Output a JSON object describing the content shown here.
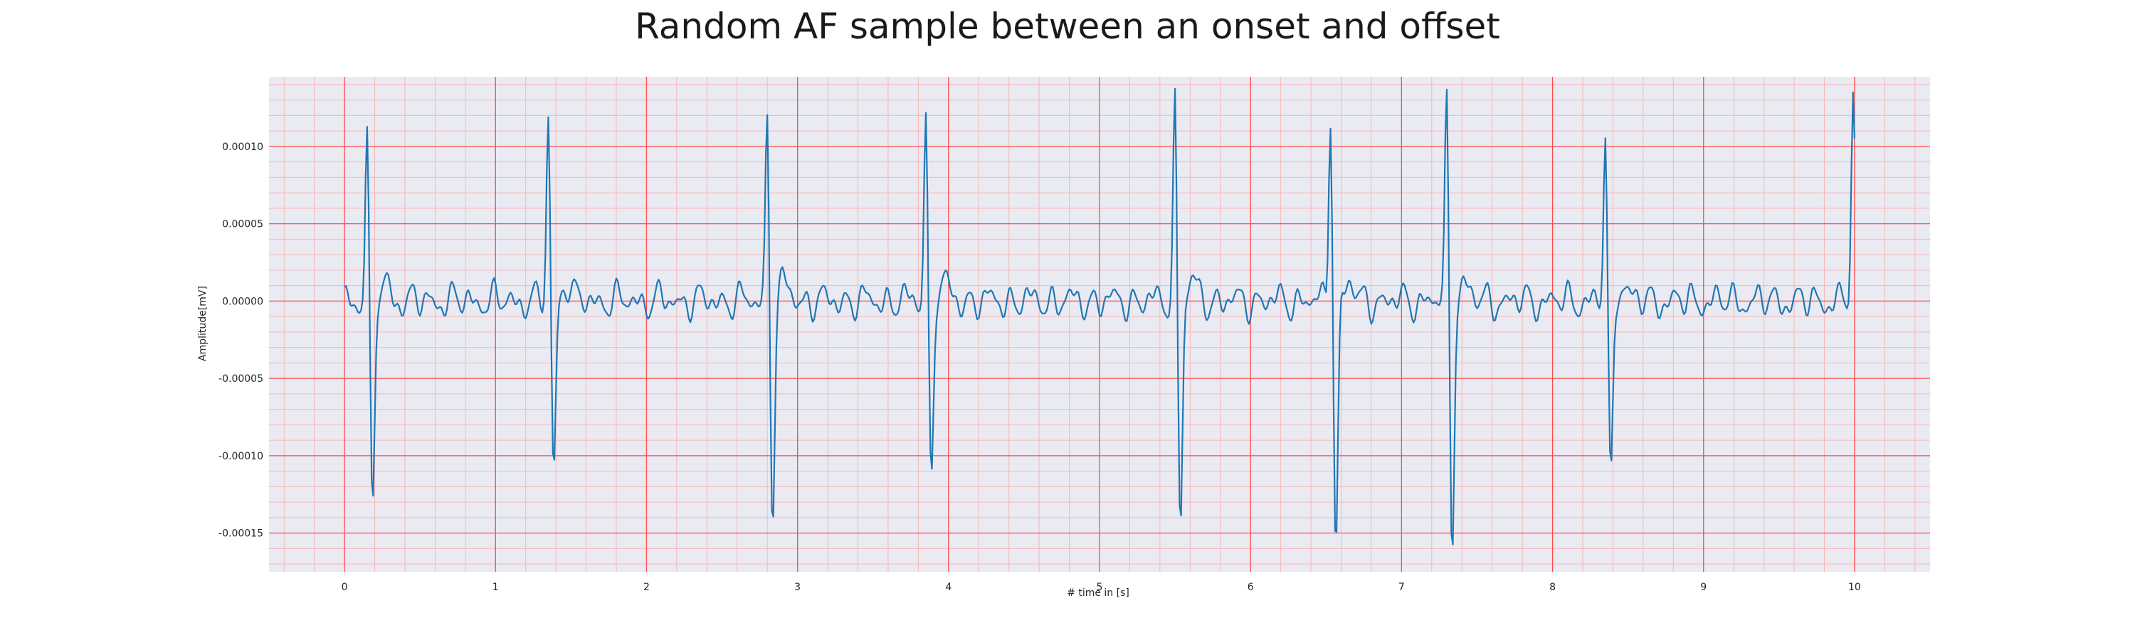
{
  "chart_data": {
    "type": "line",
    "title": "Random AF sample between an onset and offset",
    "xlabel": "# time in [s]",
    "ylabel": "Amplitude[mV]",
    "xlim": [
      -0.5,
      10.5
    ],
    "ylim": [
      -0.000175,
      0.000145
    ],
    "xticks": [
      0,
      1,
      2,
      3,
      4,
      5,
      6,
      7,
      8,
      9,
      10
    ],
    "xtick_labels": [
      "0",
      "1",
      "2",
      "3",
      "4",
      "5",
      "6",
      "7",
      "8",
      "9",
      "10"
    ],
    "yticks": [
      -0.00015,
      -0.0001,
      -5e-05,
      0,
      5e-05,
      0.0001
    ],
    "ytick_labels": [
      "-0.00015",
      "-0.00010",
      "-0.00005",
      "0.00000",
      "0.00005",
      "0.00010"
    ],
    "grid": "major and minor, red",
    "colors": {
      "background": "#eaeaf2",
      "line": "#1f77b4",
      "major_grid": "#ff4d4d",
      "minor_grid": "#f7b6b6"
    },
    "series": [
      {
        "sampling_rate_hz": 100,
        "beats": [
          {
            "t": 0.15,
            "peak": 0.000117,
            "trough": -0.000144
          },
          {
            "t": 1.35,
            "peak": 0.000122,
            "trough": -0.000113
          },
          {
            "t": 2.8,
            "peak": 0.000127,
            "trough": -0.00014
          },
          {
            "t": 3.85,
            "peak": 0.000126,
            "trough": -0.000118
          },
          {
            "t": 5.5,
            "peak": 0.000134,
            "trough": -0.000143
          },
          {
            "t": 6.53,
            "peak": 0.00013,
            "trough": -0.00016
          },
          {
            "t": 7.3,
            "peak": 0.000133,
            "trough": -0.000158
          },
          {
            "t": 8.35,
            "peak": 0.00011,
            "trough": -0.000122
          },
          {
            "t": 9.99,
            "peak": 0.00013,
            "trough": 2e-05
          }
        ],
        "baseline_amplitude": 1.2e-05
      }
    ]
  }
}
